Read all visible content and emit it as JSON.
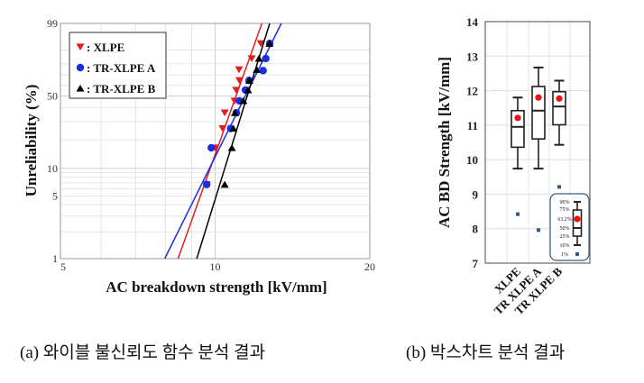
{
  "chart_data": [
    {
      "type": "scatter",
      "subtype": "weibull-probability-plot",
      "xlabel": "AC breakdown strength [kV/mm]",
      "ylabel": "Unreliability (%)",
      "x_scale": "log",
      "y_scale": "weibull",
      "xlim": [
        5,
        20
      ],
      "ylim": [
        1,
        99
      ],
      "x_ticks": [
        "5",
        "10",
        "20"
      ],
      "y_ticks": [
        "1",
        "5",
        "10",
        "50",
        "99"
      ],
      "grid": true,
      "legend_position": "top-left",
      "series": [
        {
          "name": ": XLPE",
          "marker": "triangle-down",
          "color": "#e02020",
          "x": [
            9.63,
            10.01,
            10.34,
            10.44,
            10.91,
            10.99,
            11.15,
            11.13,
            11.78,
            12.27
          ],
          "y": [
            6.7,
            16.5,
            25.8,
            36.2,
            45.8,
            55.6,
            64.8,
            74.9,
            84.2,
            93.5
          ],
          "fit_line": {
            "x": [
              8.47,
              12.33
            ],
            "y": [
              1,
              99
            ]
          }
        },
        {
          "name": ": TR-XLPE A",
          "marker": "circle",
          "color": "#1a2ee0",
          "x": [
            9.63,
            9.83,
            10.72,
            11.0,
            11.15,
            11.45,
            11.64,
            12.4,
            12.55,
            12.77
          ],
          "y": [
            6.7,
            16.5,
            25.8,
            36.2,
            45.8,
            55.6,
            64.8,
            74.0,
            84.2,
            93.5
          ],
          "fit_line": {
            "x": [
              7.98,
              13.45
            ],
            "y": [
              1,
              99
            ]
          }
        },
        {
          "name": ": TR-XLPE B",
          "marker": "triangle-up",
          "color": "#000000",
          "x": [
            10.44,
            10.78,
            10.85,
            10.93,
            11.35,
            11.59,
            11.66,
            12.05,
            12.17,
            12.76
          ],
          "y": [
            6.7,
            16.5,
            25.8,
            36.2,
            45.8,
            55.6,
            64.8,
            74.9,
            84.2,
            93.5
          ],
          "fit_line": {
            "x": [
              9.21,
              12.77
            ],
            "y": [
              1,
              99
            ]
          }
        }
      ]
    },
    {
      "type": "box",
      "ylabel": "AC BD Strength [kV/mm]",
      "ylim": [
        7,
        14
      ],
      "y_ticks": [
        "7",
        "8",
        "9",
        "10",
        "11",
        "12",
        "13",
        "14"
      ],
      "grid": true,
      "categories": [
        "XLPE",
        "TR XLPE A",
        "TR XLPE B"
      ],
      "boxes": [
        {
          "p10": 9.74,
          "p25": 10.36,
          "p50": 10.95,
          "p63_2": 11.21,
          "p75": 11.42,
          "p90": 11.8,
          "p1": 8.42
        },
        {
          "p10": 9.74,
          "p25": 10.6,
          "p50": 11.42,
          "p63_2": 11.8,
          "p75": 12.12,
          "p90": 12.67,
          "p1": 7.96
        },
        {
          "p10": 10.43,
          "p25": 11.01,
          "p50": 11.54,
          "p63_2": 11.77,
          "p75": 11.97,
          "p90": 12.29,
          "p1": 9.21
        }
      ],
      "mean_marker_color": "#ee1111",
      "p1_marker_color": "#2a5a8a",
      "legend_position": "bottom-right",
      "legend_labels": [
        "90%",
        "75%",
        "63.2%",
        "50%",
        "25%",
        "10%",
        "1%"
      ]
    }
  ],
  "captions": {
    "a": "(a) 와이블 불신뢰도 함수 분석 결과",
    "b": "(b) 박스차트 분석 결과"
  }
}
